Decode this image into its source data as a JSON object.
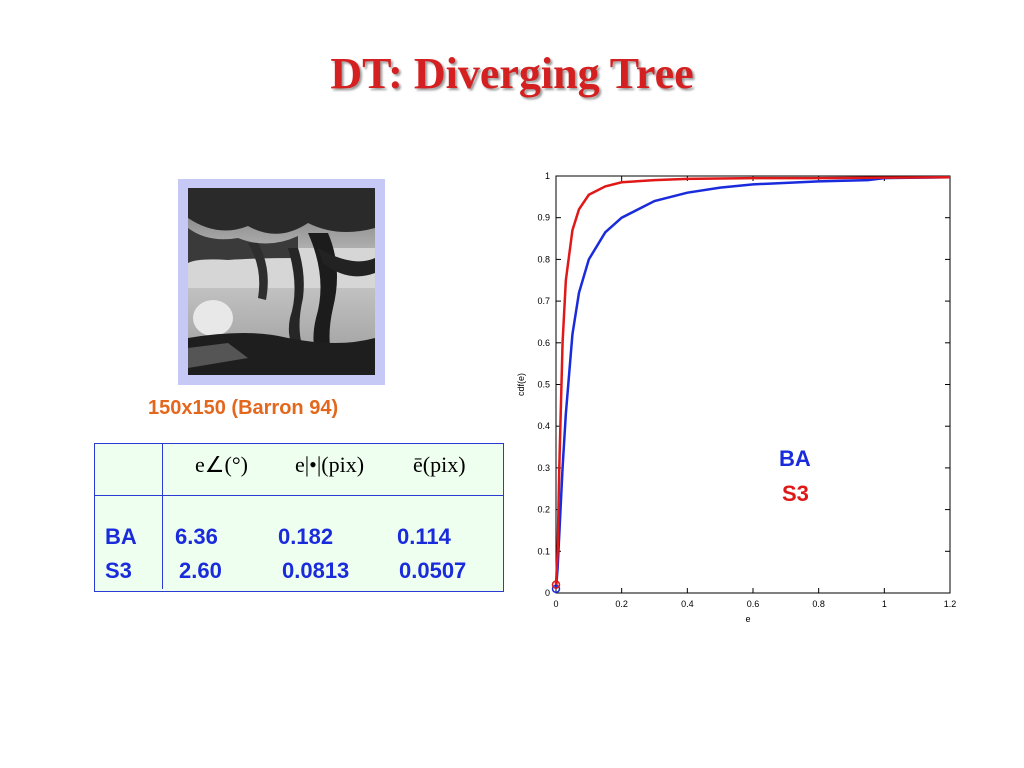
{
  "title": "DT: Diverging Tree",
  "image_caption": "150x150 (Barron 94)",
  "table": {
    "headers": [
      "e∠(°)",
      "e|•|(pix)",
      "ē(pix)"
    ],
    "rows": [
      {
        "label": "BA",
        "values": [
          "6.36",
          "0.182",
          "0.114"
        ]
      },
      {
        "label": "S3",
        "values": [
          "2.60",
          "0.0813",
          "0.0507"
        ]
      }
    ]
  },
  "legend": {
    "items": [
      {
        "label": "BA",
        "color": "#1a2bdc"
      },
      {
        "label": "S3",
        "color": "#e01818"
      }
    ]
  },
  "chart_data": {
    "type": "line",
    "xlabel": "e",
    "ylabel": "cdf(e)",
    "xlim": [
      0,
      1.2
    ],
    "ylim": [
      0,
      1
    ],
    "xticks": [
      "0",
      "0.2",
      "0.4",
      "0.6",
      "0.8",
      "1",
      "1.2"
    ],
    "yticks": [
      "0",
      "0.1",
      "0.2",
      "0.3",
      "0.4",
      "0.5",
      "0.6",
      "0.7",
      "0.8",
      "0.9",
      "1"
    ],
    "grid": false,
    "series": [
      {
        "name": "BA",
        "color": "#1a2bdc",
        "marker_at_start": true,
        "x": [
          0,
          0.005,
          0.01,
          0.02,
          0.03,
          0.05,
          0.07,
          0.1,
          0.15,
          0.2,
          0.3,
          0.4,
          0.5,
          0.6,
          0.8,
          0.95,
          1.0,
          1.2
        ],
        "y": [
          0.01,
          0.06,
          0.14,
          0.3,
          0.43,
          0.62,
          0.72,
          0.8,
          0.865,
          0.9,
          0.94,
          0.96,
          0.972,
          0.98,
          0.987,
          0.99,
          0.995,
          0.997
        ]
      },
      {
        "name": "S3",
        "color": "#e01818",
        "marker_at_start": true,
        "x": [
          0,
          0.005,
          0.01,
          0.02,
          0.03,
          0.05,
          0.07,
          0.1,
          0.15,
          0.2,
          0.3,
          0.4,
          0.6,
          0.8,
          1.0,
          1.2
        ],
        "y": [
          0.02,
          0.1,
          0.3,
          0.6,
          0.75,
          0.87,
          0.92,
          0.955,
          0.975,
          0.985,
          0.99,
          0.993,
          0.995,
          0.995,
          0.996,
          0.997
        ]
      }
    ]
  }
}
